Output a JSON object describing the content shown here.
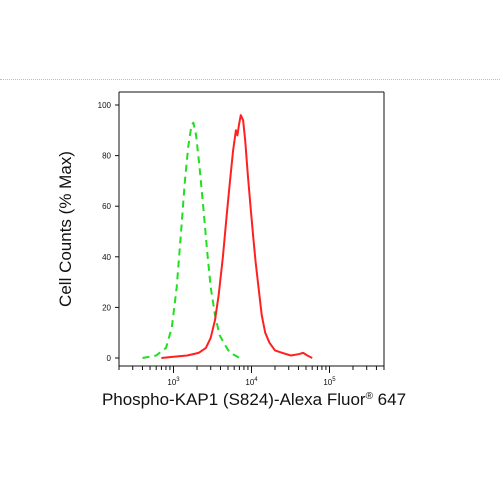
{
  "chart_data": {
    "type": "line",
    "title": "",
    "xlabel": "Phospho-KAP1 (S824)-Alexa Fluor",
    "xlabel_superscript": "®",
    "xlabel_suffix": " 647",
    "ylabel": "Cell Counts (% Max)",
    "xscale": "log",
    "xlim": [
      200,
      500000
    ],
    "ylim": [
      0,
      100
    ],
    "yticks": [
      0,
      20,
      40,
      60,
      80,
      100
    ],
    "ytick_labels": [
      "0",
      "20",
      "40",
      "60",
      "80",
      "100"
    ],
    "xticks": [
      {
        "base": "10",
        "exp": "3",
        "value": 1000
      },
      {
        "base": "10",
        "exp": "4",
        "value": 10000
      },
      {
        "base": "10",
        "exp": "5",
        "value": 100000
      }
    ],
    "grid": false,
    "legend": "none",
    "series": [
      {
        "color": "#22dd22",
        "style": "dashed",
        "points": [
          [
            400,
            0
          ],
          [
            600,
            1
          ],
          [
            800,
            4
          ],
          [
            950,
            12
          ],
          [
            1100,
            28
          ],
          [
            1250,
            50
          ],
          [
            1400,
            70
          ],
          [
            1550,
            84
          ],
          [
            1700,
            92
          ],
          [
            1800,
            93
          ],
          [
            1950,
            88
          ],
          [
            2150,
            76
          ],
          [
            2400,
            60
          ],
          [
            2700,
            42
          ],
          [
            3000,
            28
          ],
          [
            3400,
            17
          ],
          [
            3900,
            9
          ],
          [
            4600,
            5
          ],
          [
            5300,
            2
          ],
          [
            6200,
            1
          ],
          [
            7000,
            0
          ]
        ]
      },
      {
        "color": "#ff2020",
        "style": "solid",
        "points": [
          [
            700,
            0
          ],
          [
            1000,
            0.5
          ],
          [
            1500,
            1
          ],
          [
            2100,
            2
          ],
          [
            2600,
            4
          ],
          [
            3000,
            8
          ],
          [
            3400,
            15
          ],
          [
            3800,
            25
          ],
          [
            4300,
            40
          ],
          [
            4800,
            56
          ],
          [
            5300,
            70
          ],
          [
            5800,
            82
          ],
          [
            6300,
            90
          ],
          [
            6600,
            88
          ],
          [
            6900,
            92
          ],
          [
            7300,
            96
          ],
          [
            7800,
            94
          ],
          [
            8300,
            86
          ],
          [
            9000,
            72
          ],
          [
            9700,
            60
          ],
          [
            10500,
            48
          ],
          [
            11300,
            38
          ],
          [
            12200,
            29
          ],
          [
            13500,
            17
          ],
          [
            15000,
            10
          ],
          [
            17000,
            6
          ],
          [
            20000,
            3
          ],
          [
            25000,
            2
          ],
          [
            32000,
            1
          ],
          [
            40000,
            1.5
          ],
          [
            46000,
            2
          ],
          [
            52000,
            1
          ],
          [
            60000,
            0
          ]
        ]
      }
    ]
  }
}
